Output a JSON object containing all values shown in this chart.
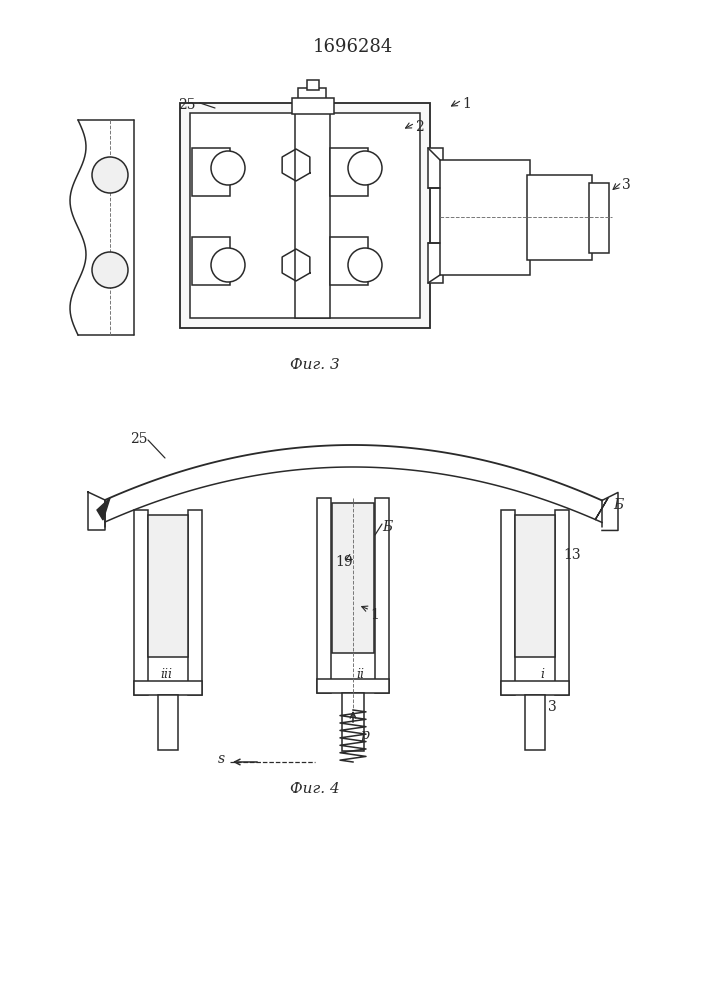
{
  "title": "1696284",
  "background_color": "#ffffff",
  "line_color": "#2a2a2a",
  "line_width": 1.1,
  "fig_width": 7.07,
  "fig_height": 10.0,
  "fig3_caption": "Фиг. 3",
  "fig4_caption": "Фиг. 4"
}
